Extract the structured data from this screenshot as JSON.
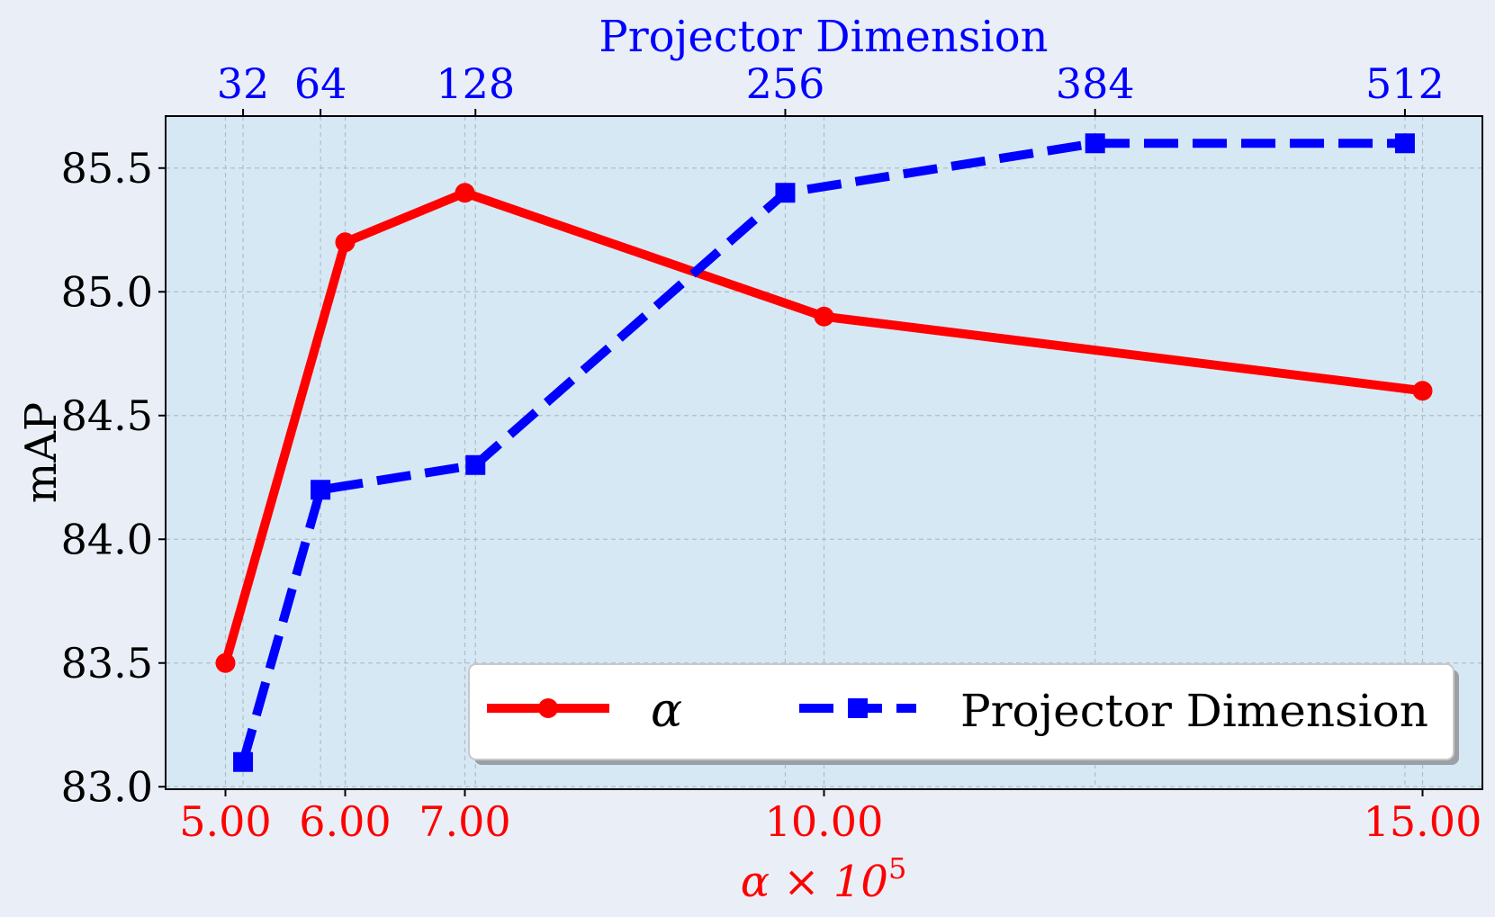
{
  "chart_data": {
    "type": "line",
    "ylabel": "mAP",
    "xlabel_bottom": "α × 10",
    "xlabel_bottom_sup": "5",
    "xlabel_top": "Projector Dimension",
    "ylim": [
      82.99,
      85.71
    ],
    "yticks": [
      "83.0",
      "83.5",
      "84.0",
      "84.5",
      "85.0",
      "85.5"
    ],
    "ytick_values": [
      83.0,
      83.5,
      84.0,
      84.5,
      85.0,
      85.5
    ],
    "bottom_axis": {
      "range": [
        4.5,
        15.5
      ],
      "ticks": [
        5.0,
        6.0,
        7.0,
        10.0,
        15.0
      ],
      "tick_labels": [
        "5.00",
        "6.00",
        "7.00",
        "10.00",
        "15.00"
      ],
      "color": "#ff0000"
    },
    "top_axis": {
      "range": [
        0,
        544
      ],
      "ticks": [
        32,
        64,
        128,
        256,
        384,
        512
      ],
      "tick_labels": [
        "32",
        "64",
        "128",
        "256",
        "384",
        "512"
      ],
      "color": "#0000ff"
    },
    "series": [
      {
        "name": "α",
        "axis": "bottom",
        "color": "#ff0000",
        "line_style": "solid",
        "marker": "circle",
        "x": [
          5.0,
          6.0,
          7.0,
          10.0,
          15.0
        ],
        "y": [
          83.5,
          85.2,
          85.4,
          84.9,
          84.6
        ]
      },
      {
        "name": "Projector Dimension",
        "axis": "top",
        "color": "#0000ff",
        "line_style": "dashed",
        "marker": "square",
        "x": [
          32,
          64,
          128,
          256,
          384,
          512
        ],
        "y": [
          83.1,
          84.2,
          84.3,
          85.4,
          85.6,
          85.6
        ]
      }
    ],
    "grid": true,
    "legend_position": "lower-right",
    "plot_background": "#d7e8f5"
  }
}
